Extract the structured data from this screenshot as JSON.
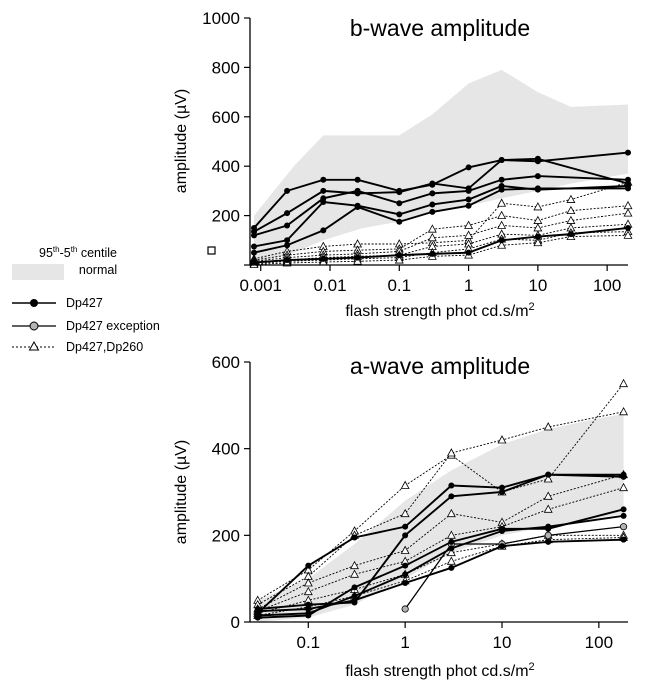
{
  "legend": {
    "band_label_line1": "95th-5th centile",
    "band_label_line2": "normal",
    "items": [
      {
        "label": "Dp427",
        "style": "dp427"
      },
      {
        "label": "Dp427  exception",
        "style": "exception"
      },
      {
        "label": "Dp427,Dp260",
        "style": "dp260"
      }
    ]
  },
  "colors": {
    "band": "#e6e6e6",
    "line": "#000000",
    "exception_marker": "#b3b3b3",
    "open_marker": "#ffffff"
  },
  "chart_data": [
    {
      "type": "line",
      "title": "b-wave amplitude",
      "xlabel": "flash strength phot cd.s/m2",
      "ylabel": "amplitude (µV)",
      "xscale": "log",
      "xlim": [
        0.0007,
        200
      ],
      "ylim": [
        0,
        1000
      ],
      "xticks": [
        {
          "v": 0.001,
          "label": "0.001"
        },
        {
          "v": 0.01,
          "label": "0.01"
        },
        {
          "v": 0.1,
          "label": "0.1"
        },
        {
          "v": 1,
          "label": "1"
        },
        {
          "v": 10,
          "label": "10"
        },
        {
          "v": 100,
          "label": "100"
        }
      ],
      "yticks": [
        {
          "v": 0,
          "label": ""
        },
        {
          "v": 200,
          "label": "200"
        },
        {
          "v": 400,
          "label": "400"
        },
        {
          "v": 600,
          "label": "600"
        },
        {
          "v": 800,
          "label": "800"
        },
        {
          "v": 1000,
          "label": "1000"
        }
      ],
      "normal_band": {
        "x": [
          0.0008,
          0.003,
          0.008,
          0.03,
          0.1,
          0.3,
          1,
          3,
          10,
          30,
          200
        ],
        "upper": [
          200,
          400,
          525,
          525,
          525,
          610,
          735,
          790,
          700,
          640,
          650
        ],
        "lower": [
          0,
          50,
          100,
          150,
          175,
          210,
          240,
          270,
          300,
          330,
          370
        ]
      },
      "series": [
        {
          "style": "dp427",
          "x": [
            0.0008,
            0.0024,
            0.008,
            0.025,
            0.1,
            0.3,
            1,
            3,
            10,
            200
          ],
          "y": [
            150,
            300,
            345,
            345,
            300,
            325,
            395,
            425,
            420,
            455
          ]
        },
        {
          "style": "dp427",
          "x": [
            0.0008,
            0.0024,
            0.008,
            0.025,
            0.1,
            0.3,
            1,
            3,
            10,
            200
          ],
          "y": [
            135,
            210,
            300,
            290,
            295,
            330,
            310,
            425,
            430,
            330
          ]
        },
        {
          "style": "dp427",
          "x": [
            0.0008,
            0.0024,
            0.008,
            0.025,
            0.1,
            0.3,
            1,
            3,
            10,
            200
          ],
          "y": [
            120,
            160,
            270,
            300,
            250,
            290,
            300,
            345,
            360,
            345
          ]
        },
        {
          "style": "dp427",
          "x": [
            0.0008,
            0.0024,
            0.008,
            0.025,
            0.1,
            0.3,
            1,
            3,
            10,
            200
          ],
          "y": [
            75,
            100,
            255,
            240,
            205,
            245,
            265,
            320,
            305,
            320
          ]
        },
        {
          "style": "dp427",
          "x": [
            0.0008,
            0.0024,
            0.008,
            0.025,
            0.1,
            0.3,
            1,
            3,
            10,
            200
          ],
          "y": [
            50,
            80,
            140,
            235,
            175,
            215,
            240,
            305,
            310,
            310
          ]
        },
        {
          "style": "dp427",
          "x": [
            0.0008,
            0.0024,
            0.008,
            0.025,
            0.1,
            0.3,
            1,
            3,
            10,
            30,
            200
          ],
          "y": [
            10,
            20,
            25,
            30,
            40,
            45,
            50,
            100,
            115,
            125,
            150
          ]
        },
        {
          "style": "dp260",
          "x": [
            0.0008,
            0.0024,
            0.008,
            0.025,
            0.1,
            0.3,
            1,
            3,
            10,
            30,
            200
          ],
          "y": [
            25,
            55,
            75,
            85,
            85,
            90,
            100,
            250,
            235,
            265,
            335
          ]
        },
        {
          "style": "dp260",
          "x": [
            0.0008,
            0.0024,
            0.008,
            0.025,
            0.1,
            0.3,
            1,
            3,
            10,
            30,
            200
          ],
          "y": [
            20,
            40,
            55,
            60,
            65,
            145,
            160,
            200,
            180,
            220,
            240
          ]
        },
        {
          "style": "dp260",
          "x": [
            0.0008,
            0.0024,
            0.008,
            0.025,
            0.1,
            0.3,
            1,
            3,
            10,
            30,
            200
          ],
          "y": [
            15,
            30,
            40,
            45,
            55,
            110,
            120,
            160,
            150,
            180,
            210
          ]
        },
        {
          "style": "dp260",
          "x": [
            0.0008,
            0.0024,
            0.008,
            0.025,
            0.1,
            0.3,
            1,
            3,
            10,
            30,
            200
          ],
          "y": [
            10,
            20,
            30,
            35,
            40,
            75,
            85,
            125,
            120,
            150,
            165
          ]
        },
        {
          "style": "dp260",
          "x": [
            0.0008,
            0.0024,
            0.008,
            0.025,
            0.1,
            0.3,
            1,
            3,
            10,
            30,
            200
          ],
          "y": [
            5,
            15,
            20,
            25,
            30,
            50,
            65,
            105,
            100,
            130,
            135
          ]
        },
        {
          "style": "dp260",
          "x": [
            0.0008,
            0.0024,
            0.008,
            0.025,
            0.1,
            0.3,
            1,
            3,
            10,
            30,
            200
          ],
          "y": [
            2,
            8,
            12,
            15,
            20,
            35,
            40,
            80,
            90,
            115,
            120
          ]
        }
      ]
    },
    {
      "type": "line",
      "title": "a-wave amplitude",
      "xlabel": "flash strength phot cd.s/m2",
      "ylabel": "amplitude (µV)",
      "xscale": "log",
      "xlim": [
        0.025,
        200
      ],
      "ylim": [
        0,
        600
      ],
      "xticks": [
        {
          "v": 0.1,
          "label": "0.1"
        },
        {
          "v": 1,
          "label": "1"
        },
        {
          "v": 10,
          "label": "10"
        },
        {
          "v": 100,
          "label": "100"
        }
      ],
      "yticks": [
        {
          "v": 0,
          "label": "0"
        },
        {
          "v": 200,
          "label": "200"
        },
        {
          "v": 400,
          "label": "400"
        },
        {
          "v": 600,
          "label": "600"
        }
      ],
      "normal_band": {
        "x": [
          0.03,
          0.1,
          0.3,
          1,
          3,
          10,
          30,
          100,
          180
        ],
        "upper": [
          50,
          100,
          180,
          280,
          350,
          410,
          445,
          470,
          480
        ],
        "lower": [
          0,
          10,
          40,
          100,
          160,
          200,
          220,
          240,
          250
        ]
      },
      "series": [
        {
          "style": "dp427",
          "x": [
            0.03,
            0.1,
            0.3,
            1,
            3,
            10,
            30,
            180
          ],
          "y": [
            20,
            130,
            195,
            220,
            315,
            310,
            340,
            335
          ]
        },
        {
          "style": "dp427",
          "x": [
            0.03,
            0.1,
            0.3,
            1,
            3,
            10,
            30,
            180
          ],
          "y": [
            30,
            40,
            45,
            200,
            290,
            300,
            340,
            340
          ]
        },
        {
          "style": "dp427",
          "x": [
            0.03,
            0.1,
            0.3,
            1,
            3,
            10,
            30,
            180
          ],
          "y": [
            10,
            15,
            80,
            130,
            185,
            215,
            215,
            260
          ]
        },
        {
          "style": "dp427",
          "x": [
            0.03,
            0.1,
            0.3,
            1,
            3,
            10,
            30,
            180
          ],
          "y": [
            15,
            20,
            60,
            110,
            170,
            210,
            220,
            245
          ]
        },
        {
          "style": "dp427",
          "x": [
            0.03,
            0.1,
            0.3,
            1,
            3,
            10,
            30,
            180
          ],
          "y": [
            25,
            30,
            50,
            90,
            125,
            175,
            185,
            190
          ]
        },
        {
          "style": "exception",
          "x": [
            1,
            3,
            10,
            30,
            180
          ],
          "y": [
            30,
            180,
            180,
            200,
            220
          ]
        },
        {
          "style": "dp260",
          "x": [
            0.03,
            0.1,
            0.3,
            1,
            3,
            10,
            30,
            180
          ],
          "y": [
            50,
            120,
            210,
            315,
            385,
            300,
            330,
            550
          ]
        },
        {
          "style": "dp260",
          "x": [
            0.03,
            0.1,
            0.3,
            1,
            3,
            10,
            30,
            180
          ],
          "y": [
            40,
            105,
            200,
            250,
            390,
            420,
            450,
            485
          ]
        },
        {
          "style": "dp260",
          "x": [
            0.03,
            0.1,
            0.3,
            1,
            3,
            10,
            30,
            180
          ],
          "y": [
            30,
            90,
            130,
            165,
            250,
            230,
            290,
            340
          ]
        },
        {
          "style": "dp260",
          "x": [
            0.03,
            0.1,
            0.3,
            1,
            3,
            10,
            30,
            180
          ],
          "y": [
            25,
            70,
            110,
            140,
            200,
            220,
            260,
            310
          ]
        },
        {
          "style": "dp260",
          "x": [
            0.03,
            0.1,
            0.3,
            1,
            3,
            10,
            30,
            180
          ],
          "y": [
            20,
            50,
            75,
            110,
            160,
            180,
            200,
            200
          ]
        },
        {
          "style": "dp260",
          "x": [
            0.03,
            0.1,
            0.3,
            1,
            3,
            10,
            30,
            180
          ],
          "y": [
            15,
            35,
            60,
            95,
            140,
            175,
            190,
            195
          ]
        }
      ]
    }
  ]
}
